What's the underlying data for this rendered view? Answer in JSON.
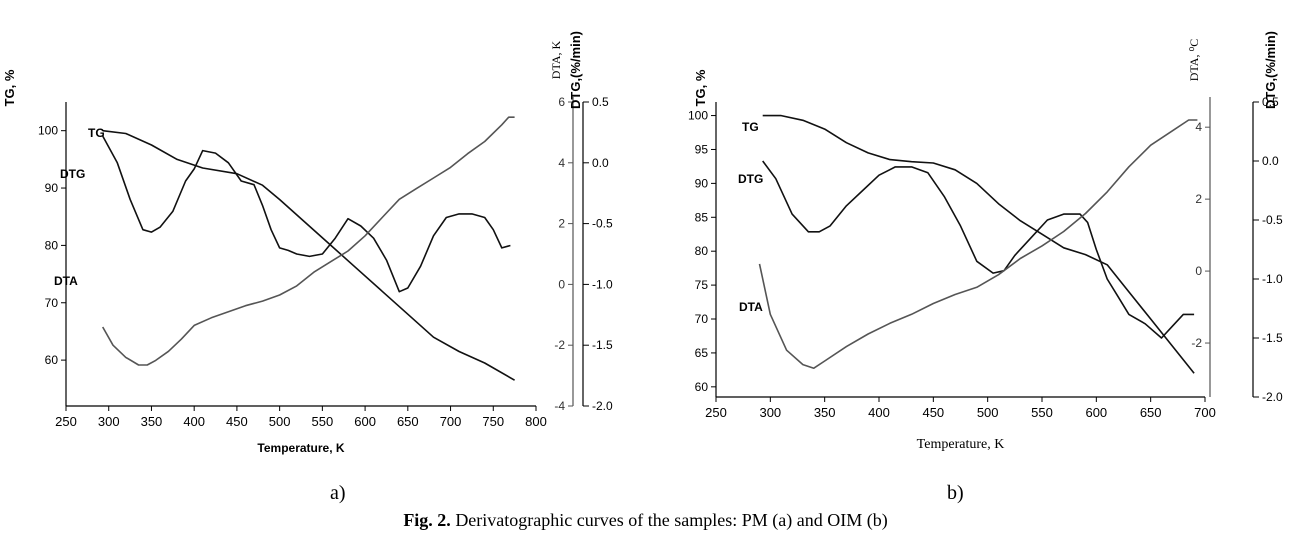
{
  "figure": {
    "caption_bold": "Fig. 2.",
    "caption_text": " Derivatographic curves of the samples: PM (a) and OIM (b)"
  },
  "chart_data": [
    {
      "type": "line",
      "panel_label": "a)",
      "xlabel": "Temperature, K",
      "x_ticks": [
        250,
        300,
        350,
        400,
        450,
        500,
        550,
        600,
        650,
        700,
        750,
        800
      ],
      "xlim": [
        250,
        800
      ],
      "axes": {
        "tg": {
          "label": "TG, %",
          "ylim": [
            52,
            105
          ],
          "ticks": [
            60,
            70,
            80,
            90,
            100
          ],
          "decimals": 0
        },
        "dta": {
          "label": "DTA, K",
          "ylim": [
            -4,
            6
          ],
          "ticks": [
            -4,
            -2,
            0,
            2,
            4,
            6
          ],
          "decimals": 0
        },
        "dtg": {
          "label": "DTG,(%/min)",
          "ylim": [
            -2.0,
            0.5
          ],
          "ticks": [
            -2.0,
            -1.5,
            -1.0,
            -0.5,
            0.0,
            0.5
          ],
          "decimals": 1
        }
      },
      "series": [
        {
          "name": "TG",
          "axis": "tg",
          "color": "#111111",
          "x": [
            293,
            320,
            350,
            380,
            410,
            450,
            480,
            500,
            530,
            560,
            590,
            620,
            650,
            680,
            710,
            740,
            775
          ],
          "y": [
            100,
            99.5,
            97.5,
            95,
            93.5,
            92.5,
            90.5,
            88,
            84,
            80,
            76,
            72,
            68,
            64,
            61.5,
            59.5,
            56.5
          ]
        },
        {
          "name": "DTG",
          "axis": "dtg",
          "color": "#111111",
          "x": [
            293,
            310,
            325,
            340,
            350,
            360,
            375,
            390,
            400,
            410,
            425,
            440,
            455,
            470,
            480,
            490,
            500,
            510,
            520,
            535,
            550,
            565,
            580,
            595,
            610,
            625,
            640,
            650,
            665,
            680,
            695,
            710,
            725,
            740,
            750,
            760,
            770
          ],
          "y": [
            0.22,
            0.0,
            -0.3,
            -0.55,
            -0.57,
            -0.53,
            -0.4,
            -0.15,
            -0.05,
            0.1,
            0.08,
            0.0,
            -0.15,
            -0.18,
            -0.35,
            -0.55,
            -0.7,
            -0.72,
            -0.75,
            -0.77,
            -0.75,
            -0.62,
            -0.46,
            -0.52,
            -0.62,
            -0.8,
            -1.06,
            -1.03,
            -0.85,
            -0.6,
            -0.45,
            -0.42,
            -0.42,
            -0.45,
            -0.55,
            -0.7,
            -0.68
          ]
        },
        {
          "name": "DTA",
          "axis": "dta",
          "color": "#555555",
          "x": [
            293,
            305,
            320,
            335,
            345,
            355,
            370,
            385,
            400,
            420,
            440,
            460,
            480,
            500,
            520,
            540,
            560,
            580,
            600,
            620,
            640,
            660,
            680,
            700,
            720,
            740,
            760,
            768,
            775
          ],
          "y": [
            -1.4,
            -2.0,
            -2.4,
            -2.65,
            -2.65,
            -2.5,
            -2.2,
            -1.8,
            -1.35,
            -1.1,
            -0.9,
            -0.7,
            -0.55,
            -0.35,
            -0.05,
            0.4,
            0.75,
            1.1,
            1.6,
            2.2,
            2.8,
            3.15,
            3.5,
            3.85,
            4.3,
            4.7,
            5.25,
            5.5,
            5.5
          ]
        }
      ],
      "annotations": [
        "TG",
        "DTG",
        "DTA"
      ],
      "grid": false
    },
    {
      "type": "line",
      "panel_label": "b)",
      "xlabel": "Temperature, K",
      "x_ticks": [
        250,
        300,
        350,
        400,
        450,
        500,
        550,
        600,
        650,
        700
      ],
      "xlim": [
        250,
        700
      ],
      "axes": {
        "tg": {
          "label": "TG, %",
          "ylim": [
            58.5,
            102
          ],
          "ticks": [
            60,
            65,
            70,
            75,
            80,
            85,
            90,
            95,
            100
          ],
          "decimals": 0
        },
        "dta": {
          "label": "DTA, ⁰C",
          "ylim": [
            -3.5,
            4.7
          ],
          "ticks": [
            -2,
            0,
            2,
            4
          ],
          "decimals": 0
        },
        "dtg": {
          "label": "DTG,(%/min)",
          "ylim": [
            -2.0,
            0.5
          ],
          "ticks": [
            -2.0,
            -1.5,
            -1.0,
            -0.5,
            0.0,
            0.5
          ],
          "decimals": 1
        }
      },
      "series": [
        {
          "name": "TG",
          "axis": "tg",
          "color": "#111111",
          "x": [
            293,
            310,
            330,
            350,
            370,
            390,
            410,
            430,
            450,
            470,
            490,
            510,
            530,
            550,
            570,
            590,
            610,
            630,
            650,
            670,
            690
          ],
          "y": [
            100,
            100,
            99.3,
            98,
            96,
            94.5,
            93.5,
            93.2,
            93,
            92,
            90,
            87,
            84.5,
            82.5,
            80.5,
            79.5,
            78,
            74,
            70,
            66,
            62
          ]
        },
        {
          "name": "DTG",
          "axis": "dtg",
          "color": "#111111",
          "x": [
            293,
            305,
            320,
            335,
            345,
            355,
            370,
            385,
            400,
            415,
            430,
            445,
            460,
            475,
            490,
            505,
            515,
            525,
            540,
            555,
            570,
            585,
            592,
            600,
            610,
            620,
            630,
            645,
            660,
            670,
            680,
            690
          ],
          "y": [
            0.0,
            -0.15,
            -0.45,
            -0.6,
            -0.6,
            -0.55,
            -0.38,
            -0.25,
            -0.12,
            -0.05,
            -0.05,
            -0.1,
            -0.3,
            -0.55,
            -0.85,
            -0.95,
            -0.93,
            -0.8,
            -0.65,
            -0.5,
            -0.45,
            -0.45,
            -0.52,
            -0.75,
            -1.0,
            -1.15,
            -1.3,
            -1.38,
            -1.5,
            -1.4,
            -1.3,
            -1.3
          ]
        },
        {
          "name": "DTA",
          "axis": "dta",
          "color": "#555555",
          "x": [
            290,
            300,
            315,
            330,
            340,
            350,
            370,
            390,
            410,
            430,
            450,
            470,
            490,
            510,
            530,
            550,
            570,
            590,
            610,
            630,
            650,
            670,
            685,
            693
          ],
          "y": [
            0.2,
            -1.2,
            -2.2,
            -2.6,
            -2.7,
            -2.5,
            -2.1,
            -1.75,
            -1.45,
            -1.2,
            -0.9,
            -0.65,
            -0.45,
            -0.1,
            0.35,
            0.7,
            1.1,
            1.6,
            2.2,
            2.9,
            3.5,
            3.9,
            4.2,
            4.2
          ]
        }
      ],
      "annotations": [
        "TG",
        "DTG",
        "DTA"
      ],
      "grid": false
    }
  ]
}
